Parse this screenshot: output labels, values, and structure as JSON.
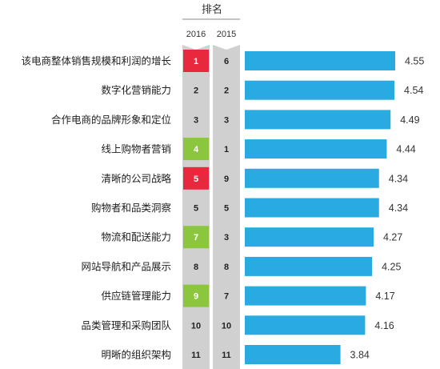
{
  "chart_data": {
    "type": "bar",
    "orientation": "horizontal",
    "header": "排名",
    "rank_columns": [
      "2016",
      "2015"
    ],
    "categories": [
      "该电商整体销售规模和利润的增长",
      "数字化营销能力",
      "合作电商的品牌形象和定位",
      "线上购物者营销",
      "清晰的公司战略",
      "购物者和品类洞察",
      "物流和配送能力",
      "网站导航和产品展示",
      "供应链管理能力",
      "品类管理和采购团队",
      "明晰的组织架构"
    ],
    "rank_2016": [
      "1",
      "2",
      "3",
      "4",
      "5",
      "5",
      "7",
      "8",
      "9",
      "10",
      "11"
    ],
    "rank_2015": [
      "6",
      "2",
      "3",
      "1",
      "9",
      "5",
      "3",
      "8",
      "7",
      "10",
      "11"
    ],
    "rank_2016_highlight": [
      "red",
      "none",
      "none",
      "green",
      "red",
      "none",
      "green",
      "none",
      "green",
      "none",
      "none"
    ],
    "values": [
      4.55,
      4.54,
      4.49,
      4.44,
      4.34,
      4.34,
      4.27,
      4.25,
      4.17,
      4.16,
      3.84
    ],
    "value_labels": [
      "4.55",
      "4.54",
      "4.49",
      "4.44",
      "4.34",
      "4.34",
      "4.27",
      "4.25",
      "4.17",
      "4.16",
      "3.84"
    ],
    "xlim": [
      2.6,
      4.6
    ],
    "colors": {
      "bar": "#29abe2",
      "rank_column": "#d0d0d0",
      "highlight_red": "#e8283c",
      "highlight_green": "#8cc63f"
    }
  }
}
